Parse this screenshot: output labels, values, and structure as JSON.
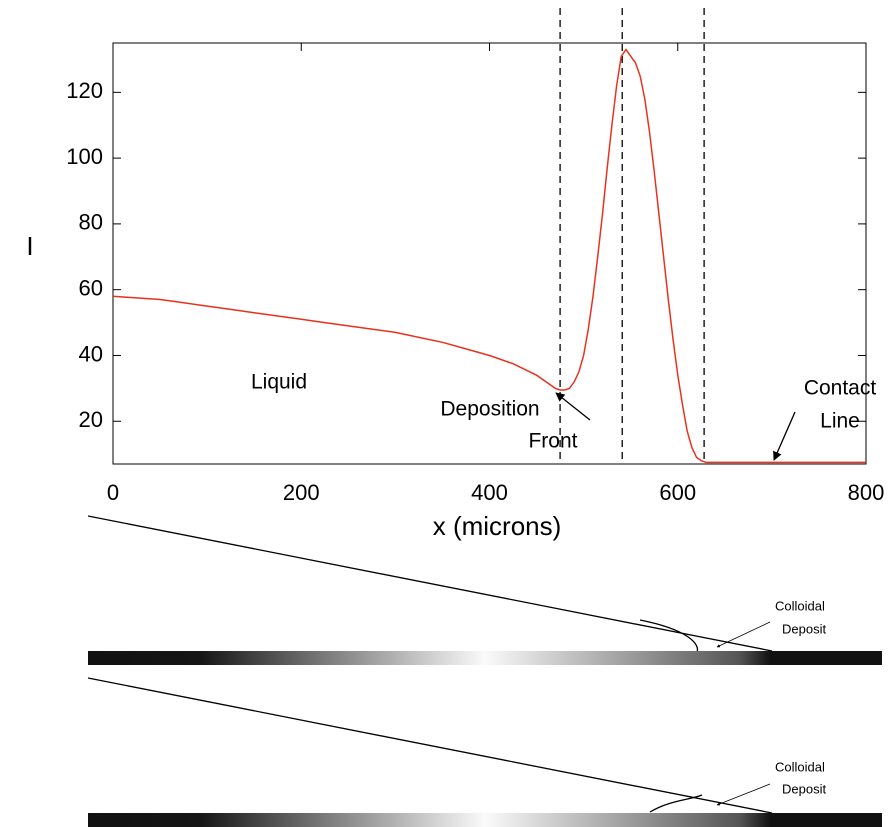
{
  "chart_data": {
    "type": "line",
    "xlabel": "x (microns)",
    "ylabel": "I",
    "color": "#e8321e",
    "x": [
      0,
      25,
      50,
      75,
      100,
      125,
      150,
      175,
      200,
      225,
      250,
      275,
      300,
      325,
      350,
      375,
      400,
      425,
      450,
      460,
      470,
      475,
      480,
      485,
      490,
      495,
      500,
      505,
      510,
      515,
      520,
      525,
      530,
      535,
      540,
      545,
      550,
      555,
      560,
      565,
      570,
      575,
      580,
      585,
      590,
      595,
      600,
      605,
      610,
      615,
      620,
      625,
      630,
      660,
      680,
      700,
      750,
      800
    ],
    "values": [
      58,
      57.5,
      57,
      56,
      55,
      54,
      53,
      52,
      51,
      50,
      49,
      48,
      47,
      45.5,
      44,
      42,
      40,
      37.5,
      34,
      32,
      30,
      29.5,
      29.5,
      30,
      32,
      35,
      40,
      48,
      58,
      70,
      83,
      97,
      110,
      122,
      131,
      133,
      131,
      129,
      125,
      118,
      108,
      96,
      83,
      70,
      57,
      45,
      34,
      25,
      17,
      12,
      9,
      8,
      7.5,
      7.5,
      7.5,
      7.5,
      7.5,
      7.5
    ],
    "xlim": [
      0,
      800
    ],
    "xticks": [
      0,
      200,
      400,
      600,
      800
    ],
    "ylim": [
      7,
      135
    ],
    "yticks": [
      20,
      40,
      60,
      80,
      100,
      120
    ],
    "vlines": [
      475,
      541,
      628
    ],
    "annotations": [
      {
        "lines": [
          "Liquid"
        ]
      },
      {
        "lines": [
          "Deposition",
          "Front"
        ]
      },
      {
        "lines": [
          "Contact",
          "Line"
        ]
      }
    ]
  },
  "diagrams": [
    {
      "label_lines": [
        "Colloidal",
        "Deposit"
      ]
    },
    {
      "label_lines": [
        "Colloidal",
        "Deposit"
      ]
    }
  ]
}
